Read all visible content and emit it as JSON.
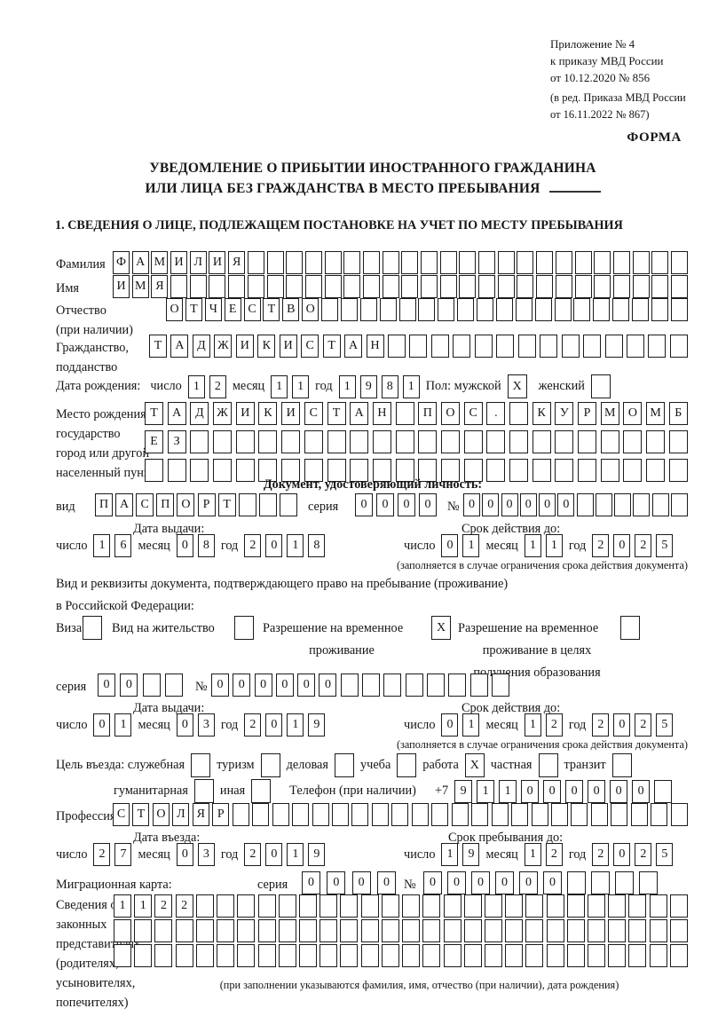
{
  "page": {
    "annex": [
      "Приложение № 4",
      "к приказу МВД России",
      "от 10.12.2020 № 856"
    ],
    "edition": [
      "(в ред. Приказа МВД России",
      "от 16.11.2022 № 867)"
    ],
    "form_label": "ФОРМА",
    "title1": "УВЕДОМЛЕНИЕ О ПРИБЫТИИ ИНОСТРАННОГО ГРАЖДАНИНА",
    "title2": "ИЛИ ЛИЦА БЕЗ ГРАЖДАНСТВА В МЕСТО ПРЕБЫВАНИЯ",
    "section1": "1. СВЕДЕНИЯ О ЛИЦЕ, ПОДЛЕЖАЩЕМ ПОСТАНОВКЕ НА УЧЕТ ПО МЕСТУ ПРЕБЫВАНИЯ"
  },
  "labels": {
    "surname": "Фамилия",
    "name": "Имя",
    "patronymic1": "Отчество",
    "patronymic2": "(при наличии)",
    "citizenship1": "Гражданство,",
    "citizenship2": "подданство",
    "birth_date": "Дата рождения:",
    "day": "число",
    "month": "месяц",
    "year": "год",
    "sex_male": "Пол: мужской",
    "sex_female": "женский",
    "birth_place1": "Место рождения:",
    "birth_place2": "государство",
    "birth_place3": "город или другой",
    "birth_place4": "населенный пункт",
    "identity_doc_header": "Документ, удостоверяющий личность:",
    "doc_type": "вид",
    "series": "серия",
    "number_sign": "№",
    "issue_date": "Дата выдачи:",
    "valid_until": "Срок действия до:",
    "valid_note": "(заполняется в случае ограничения срока действия документа)",
    "residence_doc1": "Вид и реквизиты документа, подтверждающего право на пребывание (проживание)",
    "residence_doc2": "в Российской Федерации:",
    "visa": "Виза",
    "residence_permit": "Вид на жительство",
    "temp_res1": "Разрешение на временное",
    "temp_res2": "проживание",
    "temp_res_edu1": "Разрешение на временное",
    "temp_res_edu2": "проживание в целях",
    "temp_res_edu3": "получения образования",
    "purpose": "Цель въезда: служебная",
    "tourism": "туризм",
    "business": "деловая",
    "study": "учеба",
    "work": "работа",
    "private": "частная",
    "transit": "транзит",
    "humanitarian": "гуманитарная",
    "other": "иная",
    "phone": "Телефон (при наличии)",
    "phone_prefix": "+7",
    "profession": "Профессия",
    "entry_date": "Дата въезда:",
    "stay_until": "Срок пребывания до:",
    "migration_card": "Миграционная карта:",
    "reps1": "Сведения о",
    "reps2": "законных",
    "reps3": "представителях",
    "reps4": "(родителях,",
    "reps5": "усыновителях,",
    "reps6": "попечителях)",
    "reps_note": "(при заполнении указываются фамилия, имя, отчество (при наличии), дата рождения)"
  },
  "fields": {
    "surname": "ФАМИЛИЯ",
    "name": "ИМЯ",
    "patronymic": "ОТЧЕСТВО",
    "citizenship": "ТАДЖИКИСТАН",
    "birth_day": "12",
    "birth_month": "11",
    "birth_year": "1981",
    "cb_male": "X",
    "cb_female": "",
    "birth_place_row1": "ТАДЖИКИСТАН ПОС. КУРМОМБ",
    "birth_place_row2": "ЕЗ",
    "birth_place_row3": "",
    "id_doc_type": "ПАСПОРТ",
    "id_series": "0000",
    "id_number": "000000",
    "id_issue_day": "16",
    "id_issue_month": "08",
    "id_issue_year": "2018",
    "id_valid_day": "01",
    "id_valid_month": "11",
    "id_valid_year": "2025",
    "cb_visa": "",
    "cb_residence_permit": "",
    "cb_temp_residence": "X",
    "cb_temp_residence_edu": "",
    "res_series": "00",
    "res_number": "000000",
    "res_issue_day": "01",
    "res_issue_month": "03",
    "res_issue_year": "2019",
    "res_valid_day": "01",
    "res_valid_month": "12",
    "res_valid_year": "2025",
    "cb_official": "",
    "cb_tourism": "",
    "cb_business": "",
    "cb_study": "",
    "cb_work": "X",
    "cb_private": "",
    "cb_transit": "",
    "cb_humanitarian": "",
    "cb_other": "",
    "phone": "911000000",
    "profession": "СТОЛЯР",
    "entry_day": "27",
    "entry_month": "03",
    "entry_year": "2019",
    "stay_day": "19",
    "stay_month": "12",
    "stay_year": "2025",
    "mig_series": "0000",
    "mig_number": "000000",
    "reps_row1": "1122",
    "reps_row2": "",
    "reps_row3": ""
  }
}
